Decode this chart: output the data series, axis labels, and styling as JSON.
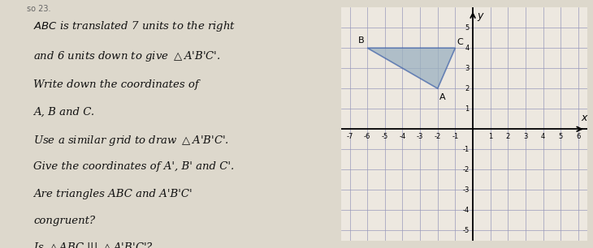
{
  "A": [
    -2,
    2
  ],
  "B": [
    -6,
    4
  ],
  "C": [
    -1,
    4
  ],
  "translation": [
    7,
    -6
  ],
  "xlim": [
    -7.5,
    6.5
  ],
  "ylim": [
    -5.5,
    6.0
  ],
  "xticks": [
    -7,
    -6,
    -5,
    -4,
    -3,
    -2,
    -1,
    1,
    2,
    3,
    4,
    5,
    6
  ],
  "yticks": [
    -5,
    -4,
    -3,
    -2,
    -1,
    1,
    2,
    3,
    4,
    5
  ],
  "triangle_fill_color": "#9ab0c0",
  "triangle_edge_color": "#4466aa",
  "background_left": "#ddd8cc",
  "background_right": "#ede8e0",
  "grid_color": "#9999bb",
  "text_color": "#111111",
  "stripe_color": "#2a4a7a",
  "axis_label_x": "x",
  "axis_label_y": "y"
}
